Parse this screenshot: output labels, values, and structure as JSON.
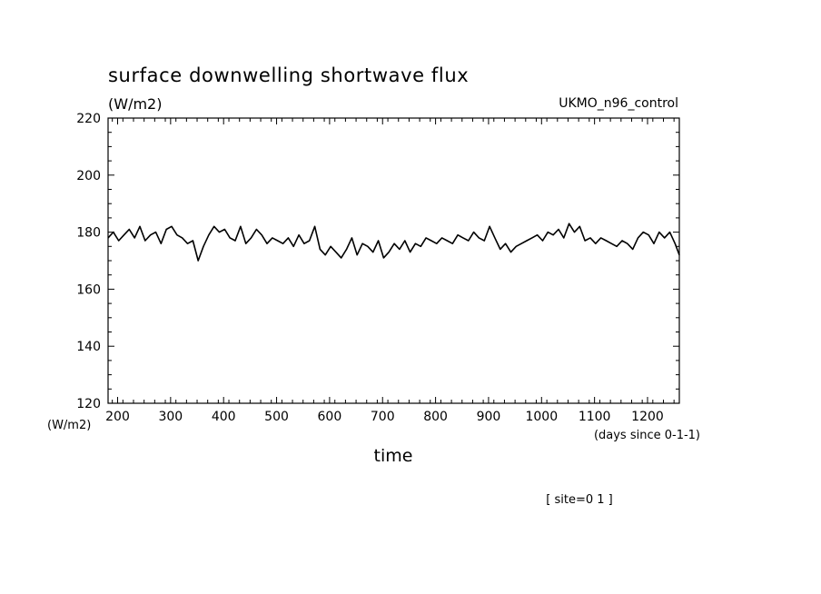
{
  "chart_data": {
    "type": "line",
    "title": "surface downwelling shortwave flux",
    "units_label": "(W/m2)",
    "model_label": "UKMO_n96_control",
    "xlabel": "time",
    "x_units_label": "(days since 0-1-1)",
    "y_units_label": "(W/m2)",
    "site_label": "[ site=0 1 ]",
    "xlim": [
      182,
      1260
    ],
    "ylim": [
      120,
      220
    ],
    "x_ticks": [
      200,
      300,
      400,
      500,
      600,
      700,
      800,
      900,
      1000,
      1100,
      1200
    ],
    "x_tick_labels": [
      "200",
      "300",
      "400",
      "500",
      "600",
      "700",
      "800",
      "900",
      "1000",
      "1100",
      "1200"
    ],
    "y_ticks": [
      120,
      140,
      160,
      180,
      200,
      220
    ],
    "y_tick_labels": [
      "120",
      "140",
      "160",
      "180",
      "200",
      "220"
    ],
    "grid": false,
    "legend": "none",
    "line_color": "#000000",
    "series": [
      {
        "x": [
          182,
          192,
          202,
          212,
          222,
          232,
          242,
          252,
          262,
          272,
          282,
          292,
          302,
          312,
          322,
          332,
          342,
          352,
          362,
          372,
          382,
          392,
          402,
          412,
          422,
          432,
          442,
          452,
          462,
          472,
          482,
          492,
          502,
          512,
          522,
          532,
          542,
          552,
          562,
          572,
          582,
          592,
          602,
          612,
          622,
          632,
          642,
          652,
          662,
          672,
          682,
          692,
          702,
          712,
          722,
          732,
          742,
          752,
          762,
          772,
          782,
          792,
          802,
          812,
          822,
          832,
          842,
          852,
          862,
          872,
          882,
          892,
          902,
          912,
          922,
          932,
          942,
          952,
          962,
          972,
          982,
          992,
          1002,
          1012,
          1022,
          1032,
          1042,
          1052,
          1062,
          1072,
          1082,
          1092,
          1102,
          1112,
          1122,
          1132,
          1142,
          1152,
          1162,
          1172,
          1182,
          1192,
          1202,
          1212,
          1222,
          1232,
          1242,
          1252,
          1260
        ],
        "y": [
          178,
          180,
          177,
          179,
          181,
          178,
          182,
          177,
          179,
          180,
          176,
          181,
          182,
          179,
          178,
          176,
          177,
          170,
          175,
          179,
          182,
          180,
          181,
          178,
          177,
          182,
          176,
          178,
          181,
          179,
          176,
          178,
          177,
          176,
          178,
          175,
          179,
          176,
          177,
          182,
          174,
          172,
          175,
          173,
          171,
          174,
          178,
          172,
          176,
          175,
          173,
          177,
          171,
          173,
          176,
          174,
          177,
          173,
          176,
          175,
          178,
          177,
          176,
          178,
          177,
          176,
          179,
          178,
          177,
          180,
          178,
          177,
          182,
          178,
          174,
          176,
          173,
          175,
          176,
          177,
          178,
          179,
          177,
          180,
          179,
          181,
          178,
          183,
          180,
          182,
          177,
          178,
          176,
          178,
          177,
          176,
          175,
          177,
          176,
          174,
          178,
          180,
          179,
          176,
          180,
          178,
          180,
          176,
          172
        ]
      }
    ]
  }
}
